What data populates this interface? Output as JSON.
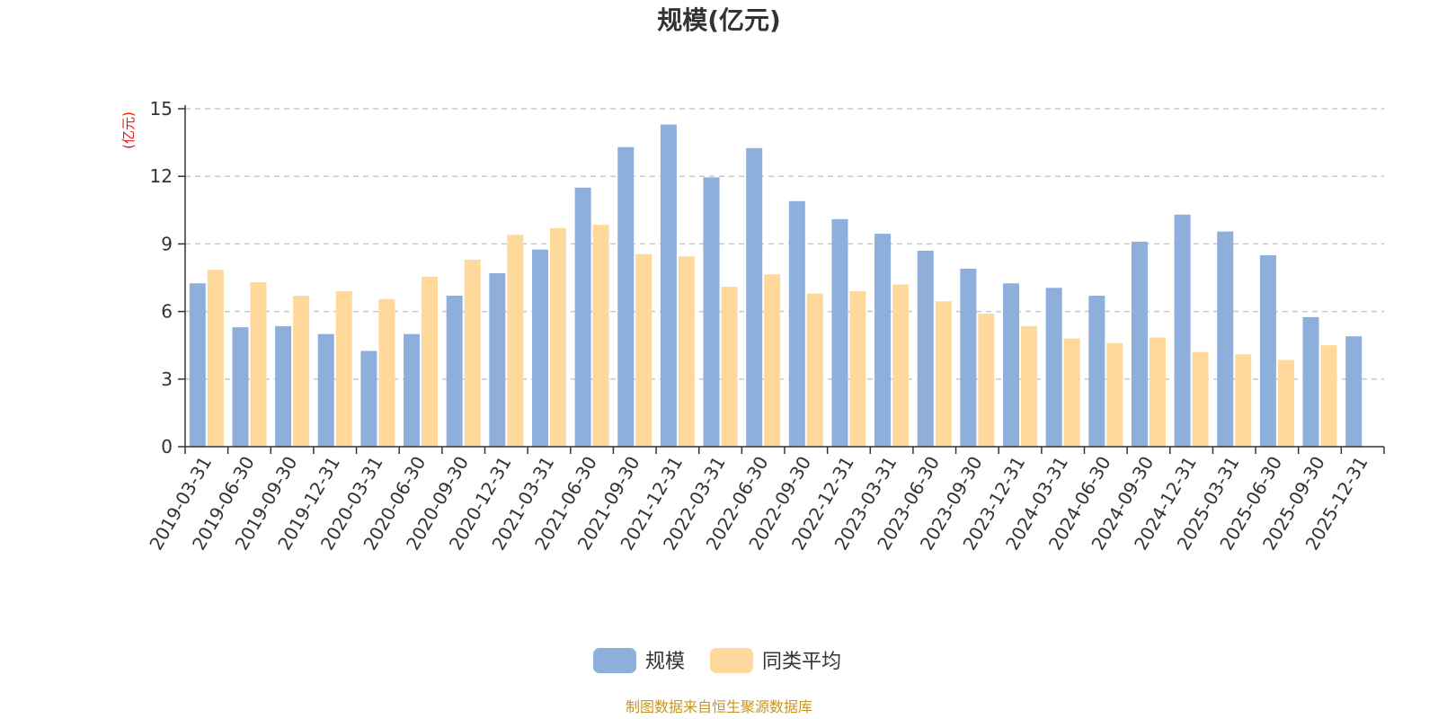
{
  "chart_data": {
    "type": "bar",
    "title": "规模(亿元)",
    "ylabel": "(亿元)",
    "ylim": [
      0,
      15
    ],
    "yticks": [
      "0",
      "3",
      "6",
      "9",
      "12",
      "15"
    ],
    "grid": true,
    "legend_position": "bottom",
    "categories": [
      "2019-03-31",
      "2019-06-30",
      "2019-09-30",
      "2019-12-31",
      "2020-03-31",
      "2020-06-30",
      "2020-09-30",
      "2020-12-31",
      "2021-03-31",
      "2021-06-30",
      "2021-09-30",
      "2021-12-31",
      "2022-03-31",
      "2022-06-30",
      "2022-09-30",
      "2022-12-31",
      "2023-03-31",
      "2023-06-30",
      "2023-09-30",
      "2023-12-31",
      "2024-03-31",
      "2024-06-30",
      "2024-09-30",
      "2024-12-31",
      "2025-03-31",
      "2025-06-30",
      "2025-09-30",
      "2025-12-31"
    ],
    "series": [
      {
        "name": "规模",
        "color": "#8eaedc",
        "values": [
          7.25,
          5.3,
          5.35,
          5.0,
          4.25,
          5.0,
          6.7,
          7.7,
          8.75,
          11.5,
          13.3,
          14.3,
          11.95,
          13.25,
          10.9,
          10.1,
          9.45,
          8.7,
          7.9,
          7.25,
          7.05,
          6.7,
          9.1,
          10.3,
          9.55,
          8.5,
          5.75,
          4.9
        ]
      },
      {
        "name": "同类平均",
        "color": "#fed99b",
        "values": [
          7.85,
          7.3,
          6.7,
          6.9,
          6.55,
          7.55,
          8.3,
          9.4,
          9.7,
          9.85,
          8.55,
          8.45,
          7.1,
          7.65,
          6.8,
          6.9,
          7.2,
          6.45,
          5.9,
          5.35,
          4.8,
          4.6,
          4.85,
          4.2,
          4.1,
          3.85,
          4.5,
          null
        ]
      }
    ]
  },
  "source_note": "制图数据来自恒生聚源数据库"
}
